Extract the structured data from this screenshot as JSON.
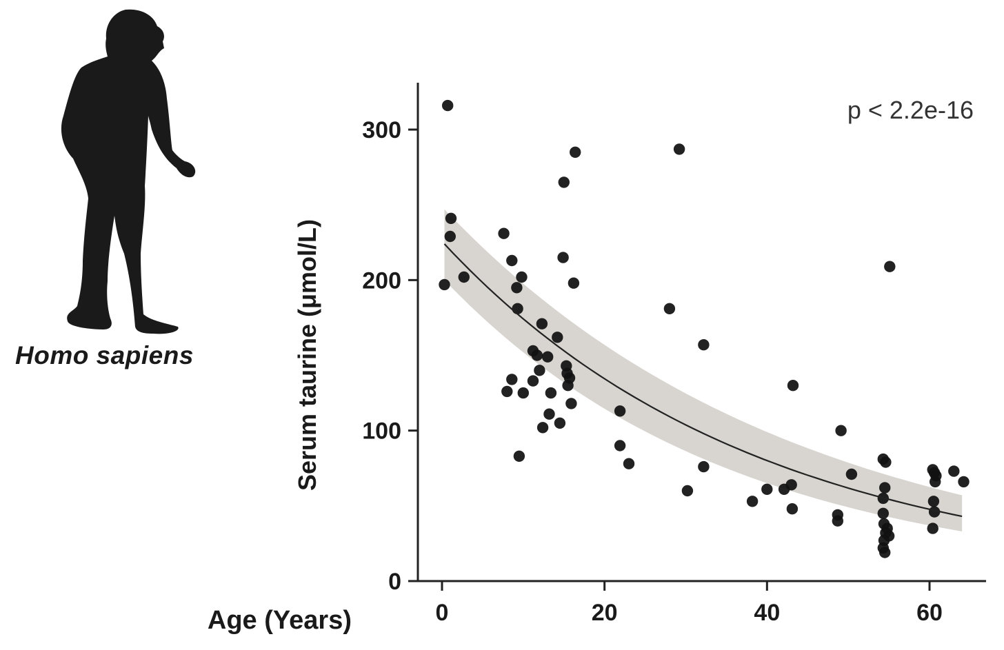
{
  "species_label": "Homo sapiens",
  "silhouette": "human-silhouette-icon",
  "colors": {
    "points": "#111111",
    "fit_line": "#222222",
    "band": "#d6d2cc",
    "axis": "#222222",
    "silhouette": "#1a1a1a"
  },
  "chart_data": {
    "type": "scatter",
    "title": "",
    "xlabel": "Age (Years)",
    "ylabel": "Serum taurine (μmol/L)",
    "xlim": [
      -3,
      68
    ],
    "ylim": [
      0,
      330
    ],
    "xticks": [
      0,
      20,
      40,
      60
    ],
    "yticks": [
      0,
      100,
      200,
      300
    ],
    "annotation": "p < 2.2e-16",
    "fit": {
      "type": "exponential",
      "x_range": [
        0.3,
        64
      ],
      "y_start": 224,
      "y_end": 43,
      "ci_start": [
        200,
        247
      ],
      "ci_end": [
        33,
        57
      ]
    },
    "points": [
      {
        "x": 0.7,
        "y": 316
      },
      {
        "x": 0.3,
        "y": 197
      },
      {
        "x": 1.1,
        "y": 241
      },
      {
        "x": 1.0,
        "y": 229
      },
      {
        "x": 2.7,
        "y": 202
      },
      {
        "x": 7.6,
        "y": 231
      },
      {
        "x": 8.0,
        "y": 126
      },
      {
        "x": 8.6,
        "y": 213
      },
      {
        "x": 8.6,
        "y": 134
      },
      {
        "x": 9.2,
        "y": 195
      },
      {
        "x": 9.3,
        "y": 181
      },
      {
        "x": 9.5,
        "y": 83
      },
      {
        "x": 9.8,
        "y": 202
      },
      {
        "x": 10.0,
        "y": 125
      },
      {
        "x": 11.2,
        "y": 153
      },
      {
        "x": 11.2,
        "y": 133
      },
      {
        "x": 11.7,
        "y": 150
      },
      {
        "x": 12.0,
        "y": 140
      },
      {
        "x": 12.3,
        "y": 171
      },
      {
        "x": 12.4,
        "y": 102
      },
      {
        "x": 13.0,
        "y": 149
      },
      {
        "x": 13.4,
        "y": 125
      },
      {
        "x": 13.2,
        "y": 111
      },
      {
        "x": 14.2,
        "y": 162
      },
      {
        "x": 14.5,
        "y": 105
      },
      {
        "x": 15.0,
        "y": 265
      },
      {
        "x": 14.9,
        "y": 215
      },
      {
        "x": 15.3,
        "y": 143
      },
      {
        "x": 15.4,
        "y": 138
      },
      {
        "x": 15.5,
        "y": 130
      },
      {
        "x": 15.7,
        "y": 135
      },
      {
        "x": 15.9,
        "y": 118
      },
      {
        "x": 16.2,
        "y": 198
      },
      {
        "x": 16.4,
        "y": 285
      },
      {
        "x": 21.9,
        "y": 113
      },
      {
        "x": 21.9,
        "y": 90
      },
      {
        "x": 23.0,
        "y": 78
      },
      {
        "x": 28.0,
        "y": 181
      },
      {
        "x": 29.2,
        "y": 287
      },
      {
        "x": 30.2,
        "y": 60
      },
      {
        "x": 32.2,
        "y": 76
      },
      {
        "x": 32.2,
        "y": 157
      },
      {
        "x": 38.2,
        "y": 53
      },
      {
        "x": 40.0,
        "y": 61
      },
      {
        "x": 42.1,
        "y": 61
      },
      {
        "x": 43.0,
        "y": 64
      },
      {
        "x": 43.1,
        "y": 48
      },
      {
        "x": 43.2,
        "y": 130
      },
      {
        "x": 48.7,
        "y": 44
      },
      {
        "x": 48.7,
        "y": 40
      },
      {
        "x": 49.1,
        "y": 100
      },
      {
        "x": 50.4,
        "y": 71
      },
      {
        "x": 54.3,
        "y": 81
      },
      {
        "x": 54.6,
        "y": 79
      },
      {
        "x": 54.5,
        "y": 62
      },
      {
        "x": 54.3,
        "y": 55
      },
      {
        "x": 54.3,
        "y": 45
      },
      {
        "x": 54.4,
        "y": 38
      },
      {
        "x": 54.6,
        "y": 32
      },
      {
        "x": 54.4,
        "y": 27
      },
      {
        "x": 54.3,
        "y": 22
      },
      {
        "x": 54.5,
        "y": 19
      },
      {
        "x": 54.8,
        "y": 35
      },
      {
        "x": 55.0,
        "y": 30
      },
      {
        "x": 55.1,
        "y": 209
      },
      {
        "x": 60.4,
        "y": 74
      },
      {
        "x": 60.6,
        "y": 72
      },
      {
        "x": 60.7,
        "y": 66
      },
      {
        "x": 60.5,
        "y": 53
      },
      {
        "x": 60.6,
        "y": 46
      },
      {
        "x": 60.4,
        "y": 35
      },
      {
        "x": 60.8,
        "y": 70
      },
      {
        "x": 63.0,
        "y": 73
      },
      {
        "x": 64.2,
        "y": 66
      }
    ]
  }
}
